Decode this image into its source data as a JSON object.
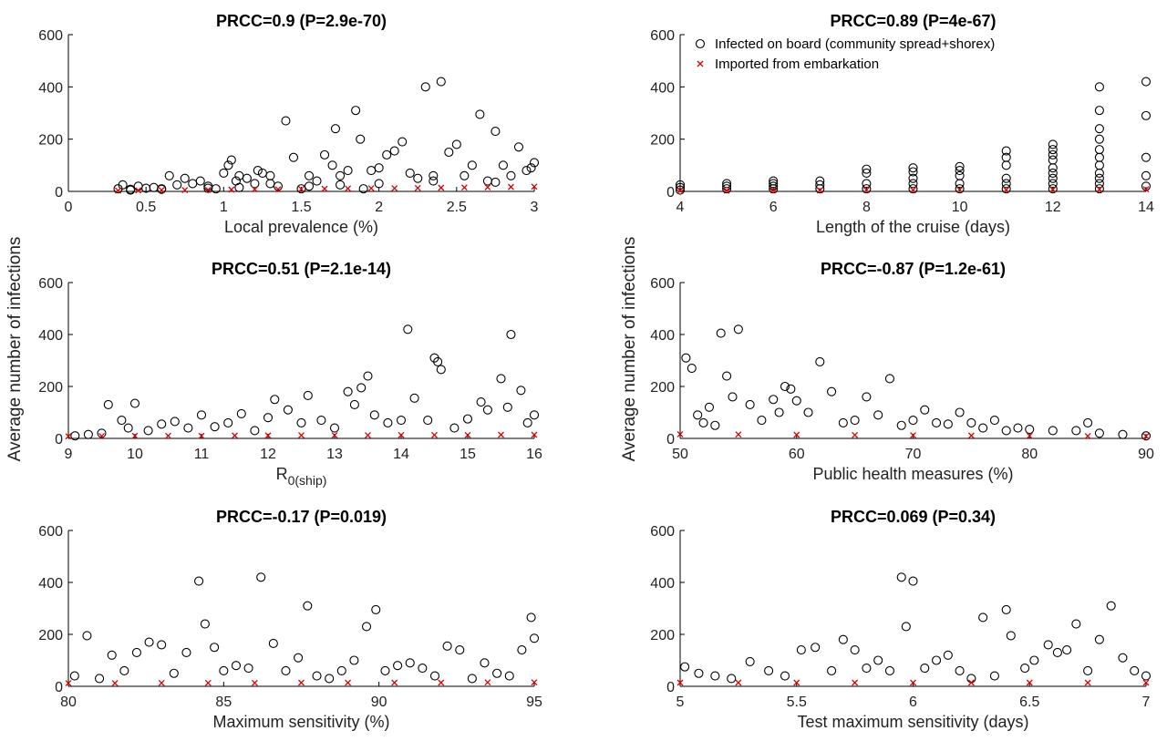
{
  "figure": {
    "shared_ylabel": "Average number of infections",
    "legend": [
      {
        "label": "Infected on board (community spread+shorex)",
        "marker": "circle",
        "color": "#000000"
      },
      {
        "label": "Imported from embarkation",
        "marker": "x",
        "color": "#e00000"
      }
    ]
  },
  "chart_data": [
    {
      "type": "scatter",
      "title": "PRCC=0.9 (P=2.9e-70)",
      "xlabel": "Local prevalence (%)",
      "xlim": [
        0,
        3
      ],
      "ylim": [
        0,
        600
      ],
      "xticks": [
        0,
        0.5,
        1,
        1.5,
        2,
        2.5,
        3
      ],
      "yticks": [
        0,
        200,
        400,
        600
      ],
      "series": [
        {
          "name": "Infected on board (community spread+shorex)",
          "marker": "circle",
          "x": [
            0.32,
            0.35,
            0.4,
            0.45,
            0.5,
            0.55,
            0.6,
            0.65,
            0.7,
            0.75,
            0.8,
            0.85,
            0.9,
            0.95,
            1.0,
            1.03,
            1.05,
            1.08,
            1.1,
            1.15,
            1.2,
            1.22,
            1.25,
            1.3,
            1.35,
            1.4,
            1.45,
            1.5,
            1.55,
            1.6,
            1.65,
            1.7,
            1.72,
            1.75,
            1.8,
            1.85,
            1.88,
            1.9,
            1.95,
            2.0,
            2.05,
            2.1,
            2.15,
            2.2,
            2.25,
            2.3,
            2.35,
            2.4,
            2.45,
            2.5,
            2.55,
            2.6,
            2.65,
            2.7,
            2.75,
            2.8,
            2.85,
            2.9,
            2.95,
            3.0,
            0.4,
            0.6,
            0.9,
            1.1,
            1.3,
            1.55,
            1.75,
            2.0,
            2.35,
            2.75,
            2.98
          ],
          "y": [
            10,
            25,
            8,
            20,
            12,
            15,
            10,
            60,
            25,
            50,
            30,
            40,
            20,
            10,
            70,
            100,
            120,
            40,
            60,
            50,
            30,
            80,
            70,
            60,
            20,
            270,
            130,
            10,
            60,
            40,
            140,
            100,
            240,
            60,
            80,
            310,
            200,
            10,
            80,
            90,
            140,
            155,
            190,
            70,
            50,
            400,
            60,
            420,
            150,
            180,
            60,
            100,
            295,
            40,
            230,
            100,
            60,
            170,
            80,
            110,
            5,
            8,
            12,
            15,
            30,
            20,
            25,
            30,
            40,
            35,
            90
          ]
        },
        {
          "name": "Imported from embarkation",
          "marker": "x",
          "x": [
            0.32,
            0.45,
            0.6,
            0.75,
            0.9,
            1.05,
            1.2,
            1.35,
            1.5,
            1.65,
            1.8,
            1.95,
            2.1,
            2.25,
            2.4,
            2.55,
            2.7,
            2.85,
            3.0
          ],
          "y": [
            3,
            4,
            5,
            5,
            6,
            7,
            8,
            8,
            9,
            10,
            11,
            12,
            12,
            13,
            14,
            15,
            16,
            17,
            18
          ]
        }
      ]
    },
    {
      "type": "scatter",
      "title": "PRCC=0.89 (P=4e-67)",
      "xlabel": "Length of the cruise (days)",
      "xlim": [
        4,
        14
      ],
      "ylim": [
        0,
        600
      ],
      "xticks": [
        4,
        6,
        8,
        10,
        12,
        14
      ],
      "yticks": [
        0,
        200,
        400,
        600
      ],
      "series": [
        {
          "name": "Infected on board (community spread+shorex)",
          "marker": "circle",
          "x": [
            4,
            4,
            4,
            5,
            5,
            5,
            6,
            6,
            6,
            6,
            7,
            7,
            7,
            8,
            8,
            8,
            8,
            9,
            9,
            9,
            9,
            9,
            10,
            10,
            10,
            10,
            10,
            11,
            11,
            11,
            11,
            11,
            11,
            12,
            12,
            12,
            12,
            12,
            12,
            12,
            12,
            12,
            13,
            13,
            13,
            13,
            13,
            13,
            13,
            13,
            13,
            13,
            13,
            14,
            14,
            14,
            14,
            14
          ],
          "y": [
            5,
            15,
            25,
            10,
            20,
            30,
            10,
            20,
            30,
            40,
            10,
            25,
            40,
            10,
            30,
            70,
            85,
            10,
            30,
            50,
            75,
            90,
            10,
            30,
            60,
            80,
            95,
            10,
            30,
            50,
            100,
            130,
            155,
            10,
            30,
            50,
            70,
            90,
            120,
            140,
            160,
            180,
            10,
            30,
            50,
            70,
            100,
            130,
            160,
            200,
            240,
            310,
            400,
            20,
            60,
            130,
            290,
            420
          ]
        },
        {
          "name": "Imported from embarkation",
          "marker": "x",
          "x": [
            4,
            5,
            6,
            7,
            8,
            9,
            10,
            11,
            12,
            13,
            14
          ],
          "y": [
            3,
            3,
            4,
            4,
            5,
            5,
            6,
            6,
            7,
            8,
            8
          ]
        }
      ]
    },
    {
      "type": "scatter",
      "title": "PRCC=0.51 (P=2.1e-14)",
      "xlabel": "R_0(ship)",
      "xlim": [
        9,
        16
      ],
      "ylim": [
        0,
        600
      ],
      "xticks": [
        9,
        10,
        11,
        12,
        13,
        14,
        15,
        16
      ],
      "yticks": [
        0,
        200,
        400,
        600
      ],
      "series": [
        {
          "name": "Infected on board (community spread+shorex)",
          "marker": "circle",
          "x": [
            9.1,
            9.3,
            9.5,
            9.6,
            9.8,
            9.9,
            10.0,
            10.2,
            10.4,
            10.6,
            10.8,
            11.0,
            11.2,
            11.4,
            11.6,
            11.8,
            12.0,
            12.1,
            12.3,
            12.5,
            12.6,
            12.8,
            13.0,
            13.2,
            13.3,
            13.4,
            13.5,
            13.6,
            13.8,
            14.0,
            14.1,
            14.2,
            14.4,
            14.5,
            14.55,
            14.6,
            14.8,
            15.0,
            15.2,
            15.3,
            15.5,
            15.6,
            15.65,
            15.8,
            15.9,
            16.0
          ],
          "y": [
            10,
            15,
            20,
            130,
            70,
            40,
            135,
            30,
            55,
            65,
            40,
            90,
            45,
            60,
            95,
            30,
            80,
            150,
            110,
            60,
            165,
            70,
            40,
            180,
            130,
            195,
            240,
            90,
            60,
            70,
            420,
            155,
            70,
            310,
            295,
            265,
            40,
            75,
            140,
            110,
            230,
            120,
            400,
            185,
            60,
            90
          ]
        },
        {
          "name": "Imported from embarkation",
          "marker": "x",
          "x": [
            9.0,
            9.5,
            10.0,
            10.5,
            11.0,
            11.5,
            12.0,
            12.5,
            13.0,
            13.5,
            14.0,
            14.5,
            15.0,
            15.5,
            16.0
          ],
          "y": [
            8,
            9,
            10,
            10,
            10,
            11,
            11,
            12,
            12,
            12,
            13,
            13,
            13,
            14,
            14
          ]
        }
      ]
    },
    {
      "type": "scatter",
      "title": "PRCC=-0.87 (P=1.2e-61)",
      "xlabel": "Public health measures (%)",
      "xlim": [
        50,
        90
      ],
      "ylim": [
        0,
        600
      ],
      "xticks": [
        50,
        60,
        70,
        80,
        90
      ],
      "yticks": [
        0,
        200,
        400,
        600
      ],
      "series": [
        {
          "name": "Infected on board (community spread+shorex)",
          "marker": "circle",
          "x": [
            50.5,
            51,
            51.5,
            52,
            52.5,
            53,
            53.5,
            54,
            54.5,
            55,
            56,
            57,
            58,
            58.5,
            59,
            59.5,
            60,
            61,
            62,
            63,
            64,
            65,
            66,
            67,
            68,
            69,
            70,
            71,
            72,
            73,
            74,
            75,
            76,
            77,
            78,
            79,
            80,
            82,
            84,
            85,
            86,
            88,
            90
          ],
          "y": [
            310,
            270,
            90,
            60,
            120,
            50,
            405,
            240,
            160,
            420,
            130,
            70,
            150,
            100,
            200,
            190,
            145,
            100,
            295,
            180,
            60,
            70,
            160,
            90,
            230,
            50,
            70,
            110,
            60,
            55,
            100,
            60,
            40,
            70,
            30,
            40,
            35,
            30,
            30,
            60,
            20,
            15,
            10
          ]
        },
        {
          "name": "Imported from embarkation",
          "marker": "x",
          "x": [
            50,
            55,
            60,
            65,
            70,
            75,
            80,
            85,
            90
          ],
          "y": [
            16,
            15,
            14,
            13,
            12,
            11,
            10,
            9,
            8
          ]
        }
      ]
    },
    {
      "type": "scatter",
      "title": "PRCC=-0.17 (P=0.019)",
      "xlabel": "Maximum sensitivity (%)",
      "xlim": [
        80,
        95
      ],
      "ylim": [
        0,
        600
      ],
      "xticks": [
        80,
        85,
        90,
        95
      ],
      "yticks": [
        0,
        200,
        400,
        600
      ],
      "series": [
        {
          "name": "Infected on board (community spread+shorex)",
          "marker": "circle",
          "x": [
            80.2,
            80.6,
            81.0,
            81.4,
            81.8,
            82.2,
            82.6,
            83.0,
            83.4,
            83.8,
            84.2,
            84.4,
            84.7,
            85.0,
            85.4,
            85.8,
            86.2,
            86.6,
            87.0,
            87.4,
            87.7,
            88.0,
            88.4,
            88.8,
            89.2,
            89.6,
            89.9,
            90.2,
            90.6,
            91.0,
            91.4,
            91.8,
            92.2,
            92.6,
            93.0,
            93.4,
            93.8,
            94.2,
            94.6,
            94.9,
            95.0
          ],
          "y": [
            40,
            195,
            30,
            120,
            60,
            130,
            170,
            160,
            50,
            130,
            405,
            240,
            150,
            60,
            80,
            70,
            420,
            165,
            60,
            110,
            310,
            40,
            30,
            60,
            100,
            230,
            295,
            60,
            80,
            90,
            70,
            40,
            155,
            140,
            30,
            90,
            50,
            40,
            140,
            265,
            185
          ]
        },
        {
          "name": "Imported from embarkation",
          "marker": "x",
          "x": [
            80,
            81.5,
            83,
            84.5,
            86,
            87.5,
            89,
            90.5,
            92,
            93.5,
            95
          ],
          "y": [
            12,
            12,
            13,
            13,
            13,
            14,
            14,
            14,
            14,
            15,
            15
          ]
        }
      ]
    },
    {
      "type": "scatter",
      "title": "PRCC=0.069 (P=0.34)",
      "xlabel": "Test maximum sensitivity (days)",
      "xlim": [
        5,
        7
      ],
      "ylim": [
        0,
        600
      ],
      "xticks": [
        5,
        5.5,
        6,
        6.5,
        7
      ],
      "yticks": [
        0,
        200,
        400,
        600
      ],
      "series": [
        {
          "name": "Infected on board (community spread+shorex)",
          "marker": "circle",
          "x": [
            5.02,
            5.08,
            5.15,
            5.22,
            5.3,
            5.38,
            5.45,
            5.52,
            5.58,
            5.65,
            5.7,
            5.75,
            5.8,
            5.85,
            5.9,
            5.95,
            5.97,
            6.0,
            6.05,
            6.1,
            6.15,
            6.2,
            6.25,
            6.3,
            6.35,
            6.4,
            6.42,
            6.48,
            6.52,
            6.58,
            6.62,
            6.66,
            6.7,
            6.75,
            6.8,
            6.85,
            6.9,
            6.95,
            7.0
          ],
          "y": [
            75,
            50,
            40,
            30,
            95,
            60,
            40,
            140,
            150,
            60,
            180,
            140,
            70,
            100,
            60,
            420,
            230,
            405,
            70,
            100,
            120,
            60,
            30,
            265,
            40,
            295,
            195,
            70,
            100,
            160,
            130,
            140,
            240,
            60,
            180,
            310,
            110,
            60,
            40
          ]
        },
        {
          "name": "Imported from embarkation",
          "marker": "x",
          "x": [
            5.0,
            5.25,
            5.5,
            5.75,
            6.0,
            6.25,
            6.5,
            6.75,
            7.0
          ],
          "y": [
            14,
            14,
            14,
            14,
            14,
            14,
            14,
            14,
            14
          ]
        }
      ]
    }
  ]
}
